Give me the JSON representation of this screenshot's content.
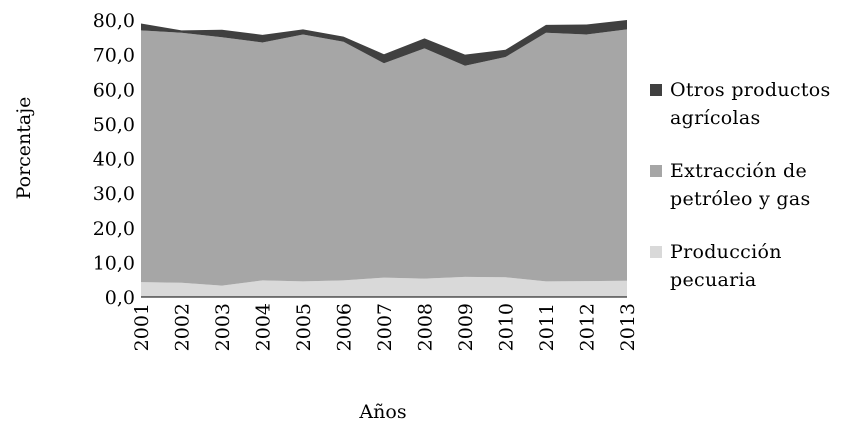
{
  "chart_data": {
    "type": "area",
    "stacked": true,
    "title": "",
    "xlabel": "Años",
    "ylabel": "Porcentaje",
    "ylim": [
      0,
      80
    ],
    "yticks": [
      "0,0",
      "10,0",
      "20,0",
      "30,0",
      "40,0",
      "50,0",
      "60,0",
      "70,0",
      "80,0"
    ],
    "categories": [
      "2001",
      "2002",
      "2003",
      "2004",
      "2005",
      "2006",
      "2007",
      "2008",
      "2009",
      "2010",
      "2011",
      "2012",
      "2013"
    ],
    "grid": false,
    "legend_position": "right",
    "series": [
      {
        "name": "Producción pecuaria",
        "color": "#d9d9d9",
        "values": [
          4.3,
          4.1,
          3.3,
          4.8,
          4.5,
          4.8,
          5.6,
          5.3,
          5.8,
          5.7,
          4.5,
          4.6,
          4.7
        ]
      },
      {
        "name": "Extracción de petróleo y gas",
        "color": "#a6a6a6",
        "values": [
          72.7,
          72.2,
          71.7,
          68.7,
          71.3,
          68.9,
          61.9,
          66.5,
          61.0,
          63.6,
          71.8,
          71.2,
          72.6
        ]
      },
      {
        "name": "Otros productos agrícolas",
        "color": "#404040",
        "values": [
          2.0,
          0.7,
          2.2,
          2.2,
          1.5,
          1.5,
          2.6,
          2.9,
          3.2,
          2.1,
          2.3,
          2.9,
          2.7
        ]
      }
    ]
  }
}
